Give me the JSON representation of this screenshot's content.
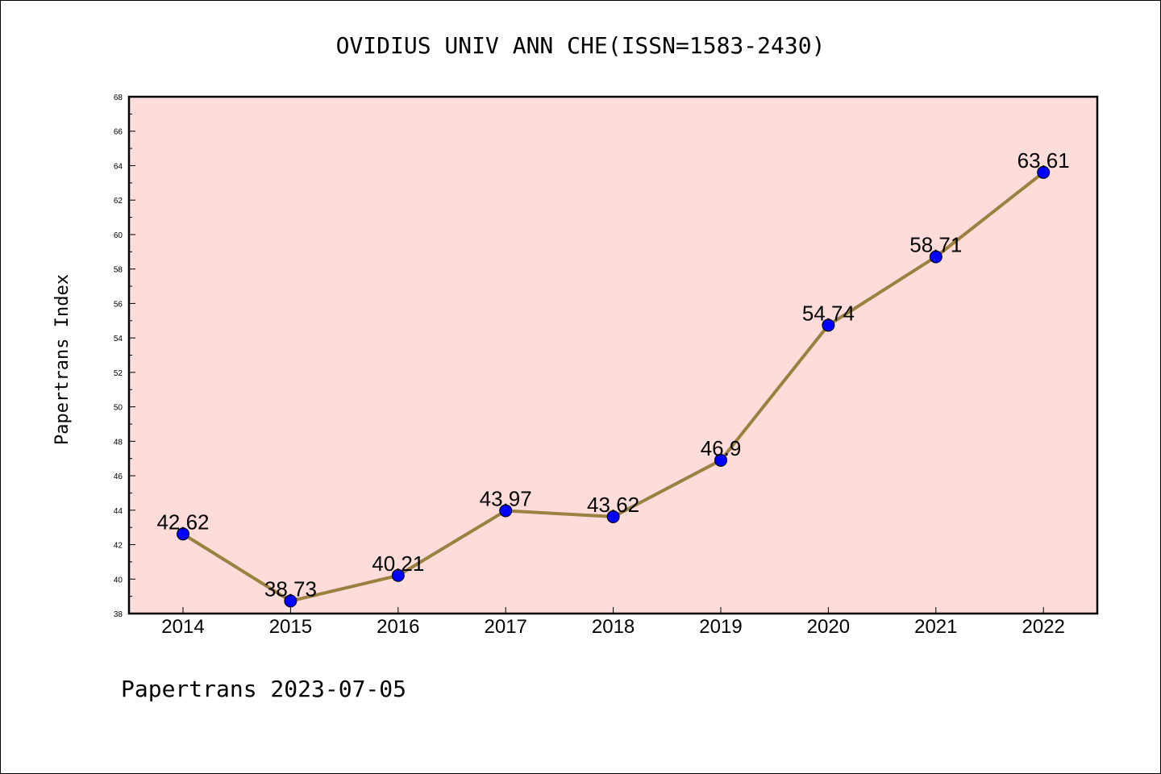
{
  "chart_data": {
    "type": "line",
    "title": "OVIDIUS UNIV ANN CHE(ISSN=1583-2430)",
    "xlabel": "",
    "ylabel": "Papertrans Index",
    "footer": "Papertrans 2023-07-05",
    "categories": [
      "2014",
      "2015",
      "2016",
      "2017",
      "2018",
      "2019",
      "2020",
      "2021",
      "2022"
    ],
    "values": [
      42.62,
      38.73,
      40.21,
      43.97,
      43.62,
      46.9,
      54.74,
      58.71,
      63.61
    ],
    "data_labels": [
      "42.62",
      "38.73",
      "40.21",
      "43.97",
      "43.62",
      "46.9",
      "54.74",
      "58.71",
      "63.61"
    ],
    "ylim": [
      38,
      68
    ],
    "yticks": [
      38,
      40,
      42,
      44,
      46,
      48,
      50,
      52,
      54,
      56,
      58,
      60,
      62,
      64,
      66,
      68
    ],
    "grid": false,
    "colors": {
      "plot_background": "#fddcda",
      "line": "#9b8040",
      "marker": "#0000ff",
      "axes": "#000000"
    }
  }
}
